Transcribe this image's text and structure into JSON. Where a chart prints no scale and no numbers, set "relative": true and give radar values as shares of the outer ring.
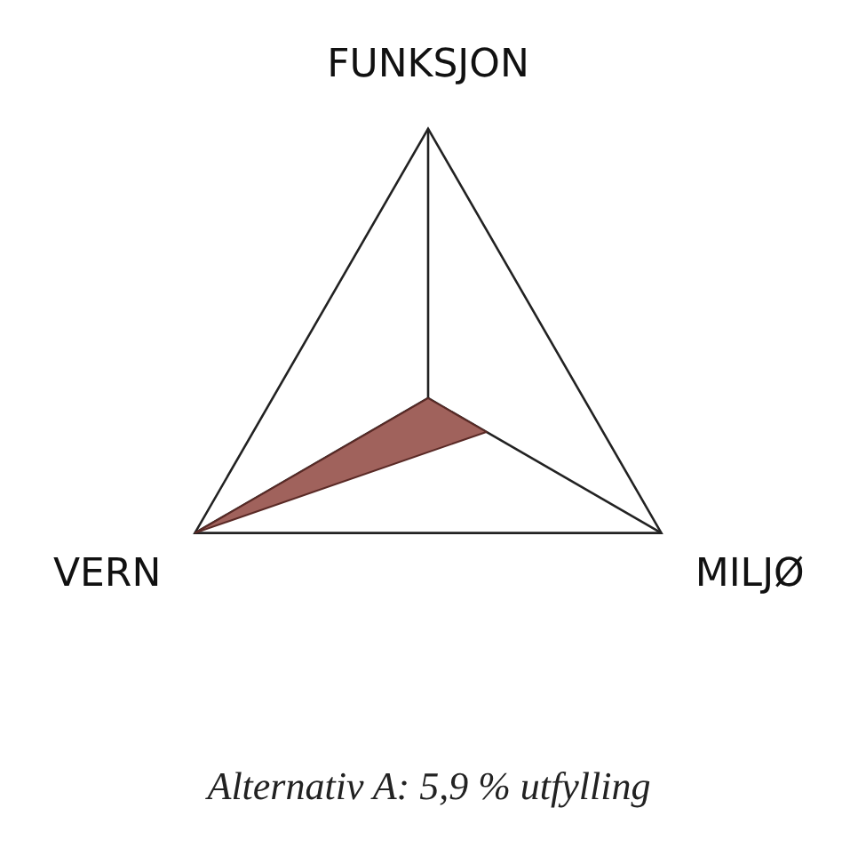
{
  "chart_data": {
    "type": "radar",
    "title": "Alternativ A: 5,9 % utfylling",
    "categories": [
      "FUNKSJON",
      "MILJØ",
      "VERN"
    ],
    "relative": true,
    "series": [
      {
        "color": "#a0625c",
        "values": [
          0,
          0.25,
          1
        ]
      }
    ],
    "legend": false,
    "marker": "none"
  }
}
